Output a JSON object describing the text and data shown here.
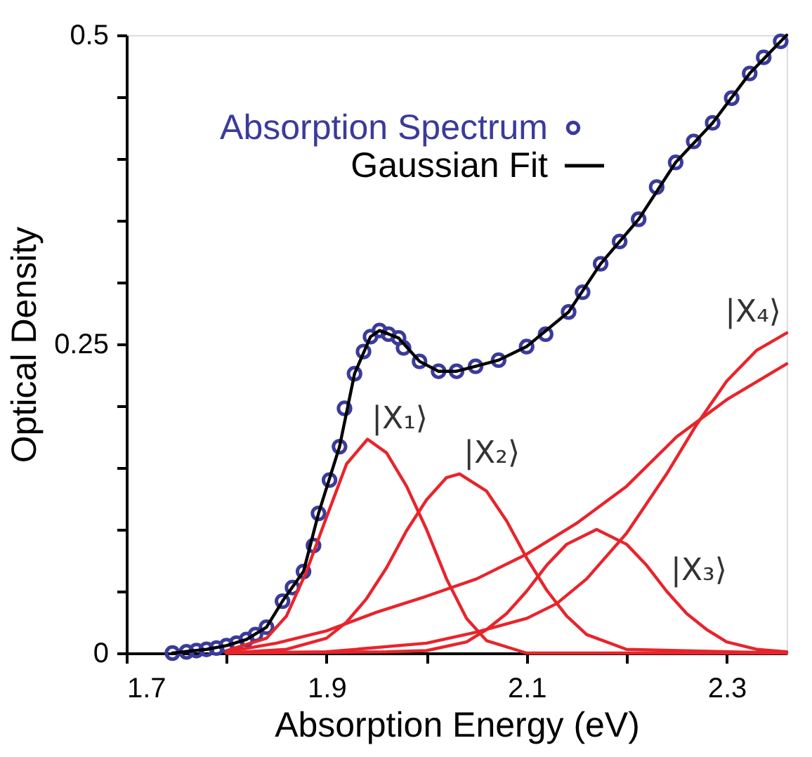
{
  "chart_data": {
    "type": "line",
    "xlabel": "Absorption Energy (eV)",
    "ylabel": "Optical Density",
    "xlim": [
      1.7,
      2.36
    ],
    "ylim": [
      0,
      0.5
    ],
    "xticks": [
      1.7,
      {
        "value": 1.8,
        "label": null
      },
      1.9,
      {
        "value": 2.0,
        "label": null
      },
      2.1,
      {
        "value": 2.2,
        "label": null
      },
      2.3
    ],
    "yticks": [
      0,
      {
        "value": 0.05,
        "label": null
      },
      {
        "value": 0.1,
        "label": null
      },
      {
        "value": 0.15,
        "label": null
      },
      {
        "value": 0.2,
        "label": null
      },
      0.25,
      {
        "value": 0.3,
        "label": null
      },
      {
        "value": 0.35,
        "label": null
      },
      {
        "value": 0.4,
        "label": null
      },
      {
        "value": 0.45,
        "label": null
      },
      0.5
    ],
    "grid": false,
    "legend": "top left",
    "series": [
      {
        "name": "Absorption Spectrum",
        "type": "scatter",
        "marker": "circle",
        "color": "#3b3b9b",
        "x": [
          1.746,
          1.76,
          1.77,
          1.78,
          1.79,
          1.8,
          1.81,
          1.82,
          1.829,
          1.84,
          1.856,
          1.866,
          1.877,
          1.887,
          1.892,
          1.903,
          1.913,
          1.918,
          1.928,
          1.937,
          1.944,
          1.953,
          1.962,
          1.972,
          1.977,
          1.993,
          2.012,
          2.03,
          2.049,
          2.072,
          2.1,
          2.119,
          2.142,
          2.156,
          2.174,
          2.193,
          2.212,
          2.23,
          2.249,
          2.267,
          2.286,
          2.305,
          2.323,
          2.337,
          2.354
        ],
        "values": [
          0,
          0.001,
          0.002,
          0.003,
          0.004,
          0.006,
          0.008,
          0.011,
          0.015,
          0.021,
          0.042,
          0.053,
          0.066,
          0.087,
          0.113,
          0.14,
          0.167,
          0.198,
          0.226,
          0.244,
          0.256,
          0.261,
          0.258,
          0.255,
          0.247,
          0.236,
          0.228,
          0.228,
          0.232,
          0.237,
          0.248,
          0.258,
          0.276,
          0.292,
          0.315,
          0.333,
          0.351,
          0.377,
          0.397,
          0.414,
          0.429,
          0.449,
          0.469,
          0.482,
          0.495
        ]
      },
      {
        "name": "Gaussian Fit",
        "line_style": "solid",
        "color": "#000000",
        "x": [
          1.746,
          1.78,
          1.8,
          1.82,
          1.84,
          1.856,
          1.877,
          1.892,
          1.913,
          1.928,
          1.944,
          1.953,
          1.972,
          1.993,
          2.012,
          2.03,
          2.049,
          2.072,
          2.1,
          2.142,
          2.174,
          2.212,
          2.249,
          2.286,
          2.323,
          2.36
        ],
        "values": [
          0,
          0.003,
          0.006,
          0.011,
          0.021,
          0.042,
          0.066,
          0.113,
          0.167,
          0.226,
          0.256,
          0.261,
          0.255,
          0.236,
          0.228,
          0.228,
          0.232,
          0.237,
          0.248,
          0.276,
          0.315,
          0.351,
          0.397,
          0.429,
          0.469,
          0.5
        ]
      },
      {
        "name": "|X₁⟩",
        "line_style": "solid",
        "color": "#e8242b",
        "x": [
          1.8,
          1.84,
          1.86,
          1.88,
          1.9,
          1.92,
          1.941,
          1.96,
          1.98,
          2.0,
          2.02,
          2.04,
          2.06,
          2.1,
          2.36
        ],
        "values": [
          0.002,
          0.012,
          0.03,
          0.066,
          0.11,
          0.153,
          0.173,
          0.162,
          0.135,
          0.1,
          0.06,
          0.028,
          0.01,
          0,
          0
        ]
      },
      {
        "name": "|X₂⟩",
        "line_style": "solid",
        "color": "#e8242b",
        "x": [
          1.8,
          1.86,
          1.9,
          1.92,
          1.94,
          1.96,
          1.98,
          2.0,
          2.02,
          2.033,
          2.06,
          2.08,
          2.1,
          2.12,
          2.14,
          2.16,
          2.2,
          2.36
        ],
        "values": [
          0,
          0.003,
          0.012,
          0.025,
          0.044,
          0.069,
          0.099,
          0.124,
          0.142,
          0.145,
          0.131,
          0.107,
          0.077,
          0.051,
          0.03,
          0.015,
          0.003,
          0
        ]
      },
      {
        "name": "|X₃⟩",
        "line_style": "solid",
        "color": "#e8242b",
        "x": [
          1.8,
          1.96,
          2.0,
          2.04,
          2.06,
          2.08,
          2.1,
          2.12,
          2.14,
          2.17,
          2.2,
          2.22,
          2.24,
          2.26,
          2.28,
          2.3,
          2.33,
          2.36
        ],
        "values": [
          0,
          0.001,
          0.002,
          0.009,
          0.019,
          0.032,
          0.05,
          0.071,
          0.088,
          0.1,
          0.088,
          0.071,
          0.05,
          0.032,
          0.019,
          0.009,
          0.003,
          0.001
        ]
      },
      {
        "name": "|X₄⟩",
        "line_style": "solid",
        "color": "#e8242b",
        "x": [
          1.8,
          1.9,
          2.0,
          2.05,
          2.1,
          2.13,
          2.16,
          2.2,
          2.24,
          2.27,
          2.3,
          2.33,
          2.36
        ],
        "values": [
          0,
          0.001,
          0.008,
          0.017,
          0.028,
          0.04,
          0.06,
          0.097,
          0.145,
          0.185,
          0.22,
          0.245,
          0.259
        ]
      },
      {
        "line_style": "solid",
        "color": "#e8242b",
        "x": [
          1.8,
          1.85,
          1.9,
          1.95,
          2.0,
          2.05,
          2.1,
          2.15,
          2.2,
          2.25,
          2.3,
          2.36
        ],
        "values": [
          0.001,
          0.008,
          0.018,
          0.033,
          0.046,
          0.06,
          0.08,
          0.105,
          0.135,
          0.175,
          0.205,
          0.234
        ]
      }
    ]
  }
}
